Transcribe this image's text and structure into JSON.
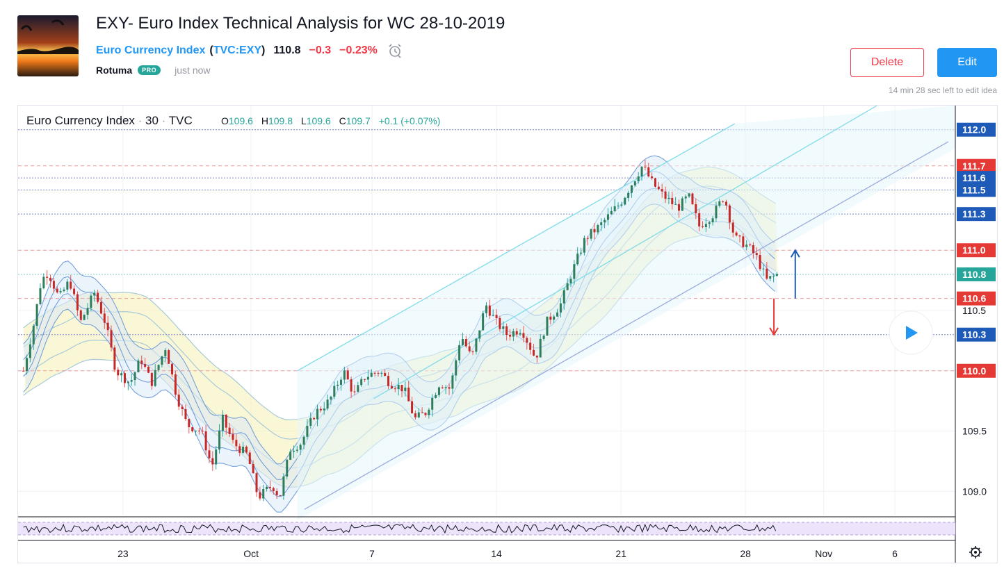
{
  "idea": {
    "title": "EXY- Euro Index Technical Analysis for WC 28-10-2019",
    "symbol_name": "Euro Currency Index",
    "symbol_code": "TVC:EXY",
    "price": "110.8",
    "change": "−0.3",
    "change_pct": "−0.23%",
    "author": "Rotuma",
    "badge": "PRO",
    "posted": "just now",
    "delete_label": "Delete",
    "edit_label": "Edit",
    "edit_note": "14 min 28 sec left to edit idea"
  },
  "legend": {
    "name": "Euro Currency Index",
    "interval": "30",
    "source": "TVC",
    "ohlc": [
      {
        "k": "O",
        "v": "109.6"
      },
      {
        "k": "H",
        "v": "109.8"
      },
      {
        "k": "L",
        "v": "109.6"
      },
      {
        "k": "C",
        "v": "109.7"
      }
    ],
    "change": "+0.1 (+0.07%)"
  },
  "colors": {
    "up": "#26a69a",
    "down": "#ef5350",
    "candle_body": "#2e3b33",
    "price_label": "#26a69a",
    "red_label": "#e53935",
    "blue_label": "#1e5bb8",
    "trendline": "#3f51b5",
    "channel": "#7fdbe8",
    "band_blue": "#5b8fd6",
    "band_yellow": "#f5f0b4"
  },
  "chart_data": {
    "type": "candlestick",
    "x_axis": {
      "ticks": [
        "23",
        "Oct",
        "7",
        "14",
        "21",
        "28",
        "Nov",
        "6"
      ]
    },
    "y_axis": {
      "range": [
        108.8,
        112.2
      ],
      "ticks": [
        "109.0",
        "109.5",
        "110.5"
      ]
    },
    "price_level_labels": [
      {
        "value": 112.0,
        "text": "112.0",
        "kind": "blue"
      },
      {
        "value": 111.7,
        "text": "111.7",
        "kind": "red"
      },
      {
        "value": 111.6,
        "text": "111.6",
        "kind": "blue"
      },
      {
        "value": 111.5,
        "text": "111.5",
        "kind": "blue"
      },
      {
        "value": 111.3,
        "text": "111.3",
        "kind": "blue"
      },
      {
        "value": 111.0,
        "text": "111.0",
        "kind": "red"
      },
      {
        "value": 110.8,
        "text": "110.8",
        "kind": "current"
      },
      {
        "value": 110.6,
        "text": "110.6",
        "kind": "red"
      },
      {
        "value": 110.3,
        "text": "110.3",
        "kind": "blue"
      },
      {
        "value": 110.0,
        "text": "110.0",
        "kind": "red"
      }
    ],
    "price_path": [
      {
        "t": 0,
        "v": 110.0
      },
      {
        "t": 0.6,
        "v": 110.4
      },
      {
        "t": 1.0,
        "v": 110.75
      },
      {
        "t": 1.4,
        "v": 110.82
      },
      {
        "t": 2.0,
        "v": 110.6
      },
      {
        "t": 2.6,
        "v": 110.75
      },
      {
        "t": 3.2,
        "v": 110.4
      },
      {
        "t": 4.0,
        "v": 110.65
      },
      {
        "t": 4.6,
        "v": 110.4
      },
      {
        "t": 5.2,
        "v": 110.0
      },
      {
        "t": 6.0,
        "v": 109.9
      },
      {
        "t": 6.6,
        "v": 110.1
      },
      {
        "t": 7.2,
        "v": 109.9
      },
      {
        "t": 8.0,
        "v": 110.2
      },
      {
        "t": 8.6,
        "v": 109.8
      },
      {
        "t": 9.2,
        "v": 109.55
      },
      {
        "t": 10.0,
        "v": 109.5
      },
      {
        "t": 10.6,
        "v": 109.2
      },
      {
        "t": 11.2,
        "v": 109.6
      },
      {
        "t": 11.8,
        "v": 109.4
      },
      {
        "t": 12.6,
        "v": 109.3
      },
      {
        "t": 13.2,
        "v": 108.95
      },
      {
        "t": 14.0,
        "v": 109.05
      },
      {
        "t": 14.4,
        "v": 108.95
      },
      {
        "t": 15.0,
        "v": 109.35
      },
      {
        "t": 15.6,
        "v": 109.4
      },
      {
        "t": 16.4,
        "v": 109.65
      },
      {
        "t": 17.2,
        "v": 109.75
      },
      {
        "t": 18.0,
        "v": 110.0
      },
      {
        "t": 18.6,
        "v": 109.8
      },
      {
        "t": 19.2,
        "v": 109.95
      },
      {
        "t": 20.0,
        "v": 110.0
      },
      {
        "t": 20.6,
        "v": 109.9
      },
      {
        "t": 21.4,
        "v": 109.85
      },
      {
        "t": 22.0,
        "v": 109.6
      },
      {
        "t": 22.6,
        "v": 109.65
      },
      {
        "t": 23.4,
        "v": 109.9
      },
      {
        "t": 24.0,
        "v": 109.85
      },
      {
        "t": 24.6,
        "v": 110.3
      },
      {
        "t": 25.2,
        "v": 110.1
      },
      {
        "t": 26.0,
        "v": 110.55
      },
      {
        "t": 26.6,
        "v": 110.4
      },
      {
        "t": 27.2,
        "v": 110.3
      },
      {
        "t": 28.0,
        "v": 110.35
      },
      {
        "t": 28.8,
        "v": 110.1
      },
      {
        "t": 29.4,
        "v": 110.4
      },
      {
        "t": 30.2,
        "v": 110.55
      },
      {
        "t": 30.8,
        "v": 110.8
      },
      {
        "t": 31.6,
        "v": 111.1
      },
      {
        "t": 32.4,
        "v": 111.2
      },
      {
        "t": 33.0,
        "v": 111.3
      },
      {
        "t": 33.6,
        "v": 111.4
      },
      {
        "t": 34.2,
        "v": 111.55
      },
      {
        "t": 34.8,
        "v": 111.7
      },
      {
        "t": 35.4,
        "v": 111.55
      },
      {
        "t": 36.0,
        "v": 111.45
      },
      {
        "t": 36.8,
        "v": 111.35
      },
      {
        "t": 37.4,
        "v": 111.45
      },
      {
        "t": 38.0,
        "v": 111.2
      },
      {
        "t": 38.8,
        "v": 111.3
      },
      {
        "t": 39.4,
        "v": 111.45
      },
      {
        "t": 40.0,
        "v": 111.1
      },
      {
        "t": 40.6,
        "v": 111.05
      },
      {
        "t": 41.2,
        "v": 110.95
      },
      {
        "t": 41.8,
        "v": 110.75
      },
      {
        "t": 42.4,
        "v": 110.8
      }
    ],
    "drawings": [
      {
        "type": "trendline",
        "from": {
          "t": 15.8,
          "v": 108.85
        },
        "to": {
          "t": 52.0,
          "v": 111.9
        }
      },
      {
        "type": "parallel_channel",
        "upper_from": {
          "t": 15.4,
          "v": 110.0
        },
        "upper_to": {
          "t": 40.0,
          "v": 112.05
        }
      },
      {
        "type": "arrow_up",
        "from": {
          "t": 43.4,
          "v": 110.6
        },
        "to": {
          "t": 43.4,
          "v": 111.0
        }
      },
      {
        "type": "arrow_down",
        "from": {
          "t": 42.2,
          "v": 110.6
        },
        "to": {
          "t": 42.2,
          "v": 110.3
        }
      }
    ],
    "oscillator": {
      "type": "rsi_pane"
    }
  }
}
